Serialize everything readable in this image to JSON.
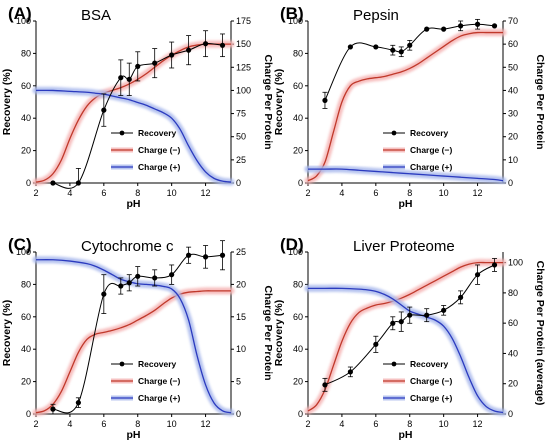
{
  "chart_data": [
    {
      "type": "line",
      "panel_label": "(A)",
      "title": "BSA",
      "xlabel": "pH",
      "ylabel": "Recovery (%)",
      "y2label": "Charge Per Protein",
      "xlim": [
        2,
        13.5
      ],
      "ylim": [
        0,
        100
      ],
      "y2lim": [
        0,
        175
      ],
      "xticks": [
        2,
        4,
        6,
        8,
        10,
        12
      ],
      "yticks": [
        0,
        20,
        40,
        60,
        80,
        100
      ],
      "y2ticks": [
        0,
        25,
        50,
        75,
        100,
        125,
        150,
        175
      ],
      "legend_position": "lower-right",
      "series": [
        {
          "name": "Recovery",
          "axis": "left",
          "color": "#000000",
          "markers": true,
          "x": [
            3,
            4.5,
            6,
            7,
            7.5,
            8,
            9,
            10,
            11,
            12,
            13
          ],
          "y": [
            0,
            0,
            45,
            65,
            64,
            72,
            74,
            79,
            82,
            86,
            85
          ],
          "err": [
            0,
            9,
            10,
            11,
            10,
            9,
            9,
            8,
            9,
            8,
            7
          ]
        },
        {
          "name": "Charge (−)",
          "axis": "right",
          "color": "#c0392b",
          "glow": "#f5b3b3",
          "x": [
            2,
            2.5,
            3,
            3.5,
            4,
            4.5,
            5,
            5.5,
            6,
            6.5,
            7,
            7.5,
            8,
            8.5,
            9,
            9.5,
            10,
            10.5,
            11,
            11.5,
            12,
            12.5,
            13,
            13.5
          ],
          "y": [
            1,
            3,
            10,
            25,
            48,
            68,
            83,
            92,
            97,
            100,
            103,
            107,
            112,
            118,
            125,
            132,
            138,
            143,
            147,
            149,
            150,
            150,
            150,
            150
          ]
        },
        {
          "name": "Charge (+)",
          "axis": "right",
          "color": "#2b3bbf",
          "glow": "#a8b8ec",
          "x": [
            2,
            3,
            4,
            5,
            5.5,
            6,
            6.5,
            7,
            7.5,
            8,
            8.5,
            9,
            9.5,
            10,
            10.5,
            11,
            11.5,
            12,
            12.5,
            13,
            13.5
          ],
          "y": [
            100,
            100,
            99,
            98,
            97,
            96,
            94,
            92,
            90,
            87,
            84,
            80,
            76,
            70,
            58,
            40,
            24,
            12,
            5,
            2,
            1
          ]
        }
      ]
    },
    {
      "type": "line",
      "panel_label": "(B)",
      "title": "Pepsin",
      "xlabel": "pH",
      "ylabel": "Recovery (%)",
      "y2label": "Charge Per Protein",
      "xlim": [
        2,
        13.5
      ],
      "ylim": [
        0,
        100
      ],
      "y2lim": [
        0,
        70
      ],
      "xticks": [
        2,
        4,
        6,
        8,
        10,
        12
      ],
      "yticks": [
        0,
        20,
        40,
        60,
        80,
        100
      ],
      "y2ticks": [
        0,
        10,
        20,
        30,
        40,
        50,
        60,
        70
      ],
      "legend_position": "lower-right",
      "series": [
        {
          "name": "Recovery",
          "axis": "left",
          "color": "#000000",
          "markers": true,
          "x": [
            3,
            4.5,
            6,
            7,
            7.5,
            8,
            9,
            10,
            11,
            12,
            13
          ],
          "y": [
            51,
            84,
            84,
            82,
            81,
            85,
            95,
            95,
            97,
            98,
            97
          ],
          "err": [
            5,
            0,
            0,
            3,
            3,
            3,
            0,
            0,
            3,
            3,
            0
          ]
        },
        {
          "name": "Charge (−)",
          "axis": "right",
          "color": "#c0392b",
          "glow": "#f5b3b3",
          "x": [
            2,
            2.5,
            3,
            3.5,
            4,
            4.5,
            5,
            5.5,
            6,
            6.5,
            7,
            7.5,
            8,
            8.5,
            9,
            9.5,
            10,
            10.5,
            11,
            11.5,
            12,
            12.5,
            13,
            13.5
          ],
          "y": [
            1,
            3,
            9,
            22,
            35,
            42,
            44,
            45,
            45.5,
            46,
            47,
            48,
            49.5,
            51.5,
            54,
            56.5,
            59,
            61.5,
            63.5,
            64.5,
            65,
            65,
            65,
            65
          ]
        },
        {
          "name": "Charge (+)",
          "axis": "right",
          "color": "#2b3bbf",
          "glow": "#a8b8ec",
          "x": [
            2,
            3,
            4,
            5,
            6,
            7,
            8,
            9,
            10,
            11,
            12,
            13,
            13.5
          ],
          "y": [
            6,
            6,
            6,
            5.5,
            5,
            4.5,
            4,
            3.5,
            3,
            2.5,
            2,
            1.5,
            1
          ]
        }
      ]
    },
    {
      "type": "line",
      "panel_label": "(C)",
      "title": "Cytochrome c",
      "xlabel": "pH",
      "ylabel": "Recovery (%)",
      "y2label": "Charge Per Protein",
      "xlim": [
        2,
        13.5
      ],
      "ylim": [
        0,
        100
      ],
      "y2lim": [
        0,
        25
      ],
      "xticks": [
        2,
        4,
        6,
        8,
        10,
        12
      ],
      "yticks": [
        0,
        20,
        40,
        60,
        80,
        100
      ],
      "y2ticks": [
        0,
        5,
        10,
        15,
        20,
        25
      ],
      "legend_position": "lower-right",
      "series": [
        {
          "name": "Recovery",
          "axis": "left",
          "color": "#000000",
          "markers": true,
          "x": [
            3,
            4.5,
            6,
            7,
            7.5,
            8,
            9,
            10,
            11,
            12,
            13
          ],
          "y": [
            3,
            7,
            74,
            79,
            81,
            85,
            84,
            86,
            98,
            97,
            98
          ],
          "err": [
            3,
            3,
            12,
            5,
            5,
            6,
            5,
            6,
            5,
            7,
            9
          ]
        },
        {
          "name": "Charge (−)",
          "axis": "right",
          "color": "#c0392b",
          "glow": "#f5b3b3",
          "x": [
            2,
            2.5,
            3,
            3.5,
            4,
            4.5,
            5,
            5.5,
            6,
            6.5,
            7,
            7.5,
            8,
            8.5,
            9,
            9.5,
            10,
            10.5,
            11,
            11.5,
            12,
            12.5,
            13,
            13.5
          ],
          "y": [
            0.2,
            0.5,
            1.5,
            3.5,
            6.5,
            9.5,
            11.5,
            12.3,
            12.6,
            12.9,
            13.3,
            13.8,
            14.5,
            15.2,
            16,
            17,
            17.9,
            18.5,
            18.8,
            18.9,
            19,
            19,
            19,
            19
          ]
        },
        {
          "name": "Charge (+)",
          "axis": "right",
          "color": "#2b3bbf",
          "glow": "#a8b8ec",
          "x": [
            2,
            3,
            4,
            5,
            5.5,
            6,
            6.5,
            7,
            7.5,
            8,
            8.5,
            9,
            9.5,
            10,
            10.5,
            11,
            11.5,
            12,
            12.5,
            13,
            13.5
          ],
          "y": [
            23.8,
            23.8,
            23.6,
            23.2,
            22.8,
            22.2,
            21.5,
            20.8,
            20.4,
            20.1,
            20,
            19.9,
            19.7,
            19.3,
            17.8,
            14.5,
            9,
            4.5,
            1.7,
            0.5,
            0.2
          ]
        }
      ]
    },
    {
      "type": "line",
      "panel_label": "(D)",
      "title": "Liver Proteome",
      "xlabel": "pH",
      "ylabel": "Recovery (%)",
      "y2label": "Charge Per Protein (average)",
      "xlim": [
        2,
        13.5
      ],
      "ylim": [
        0,
        100
      ],
      "y2lim": [
        0,
        107
      ],
      "xticks": [
        2,
        4,
        6,
        8,
        10,
        12
      ],
      "yticks": [
        0,
        20,
        40,
        60,
        80,
        100
      ],
      "y2ticks": [
        0,
        20,
        40,
        60,
        80,
        100
      ],
      "legend_position": "lower-right",
      "series": [
        {
          "name": "Recovery",
          "axis": "left",
          "color": "#000000",
          "markers": true,
          "x": [
            3,
            4.5,
            6,
            7,
            7.5,
            8,
            9,
            10,
            11,
            12,
            13
          ],
          "y": [
            18,
            26,
            43,
            56,
            57,
            61,
            61,
            64,
            72,
            86,
            92
          ],
          "err": [
            4,
            3,
            5,
            4,
            6,
            5,
            4,
            3,
            4,
            6,
            4
          ]
        },
        {
          "name": "Charge (−)",
          "axis": "right",
          "color": "#c0392b",
          "glow": "#f5b3b3",
          "x": [
            2,
            2.5,
            3,
            3.5,
            4,
            4.5,
            5,
            5.5,
            6,
            6.5,
            7,
            7.5,
            8,
            8.5,
            9,
            9.5,
            10,
            10.5,
            11,
            11.5,
            12,
            12.5,
            13,
            13.5
          ],
          "y": [
            2,
            6,
            16,
            32,
            48,
            60,
            67,
            70,
            72,
            73,
            74.5,
            76.5,
            79,
            82,
            85,
            88,
            91,
            94,
            97,
            99,
            100,
            100,
            100,
            100
          ]
        },
        {
          "name": "Charge (+)",
          "axis": "right",
          "color": "#2b3bbf",
          "glow": "#a8b8ec",
          "x": [
            2,
            3,
            4,
            5,
            5.5,
            6,
            6.5,
            7,
            7.5,
            8,
            8.5,
            9,
            9.5,
            10,
            10.5,
            11,
            11.5,
            12,
            12.5,
            13,
            13.5
          ],
          "y": [
            83,
            83,
            83,
            82.5,
            82,
            81,
            79,
            76,
            72,
            68,
            66,
            64,
            62,
            58,
            50,
            38,
            24,
            12,
            5,
            2,
            1
          ]
        }
      ]
    }
  ]
}
